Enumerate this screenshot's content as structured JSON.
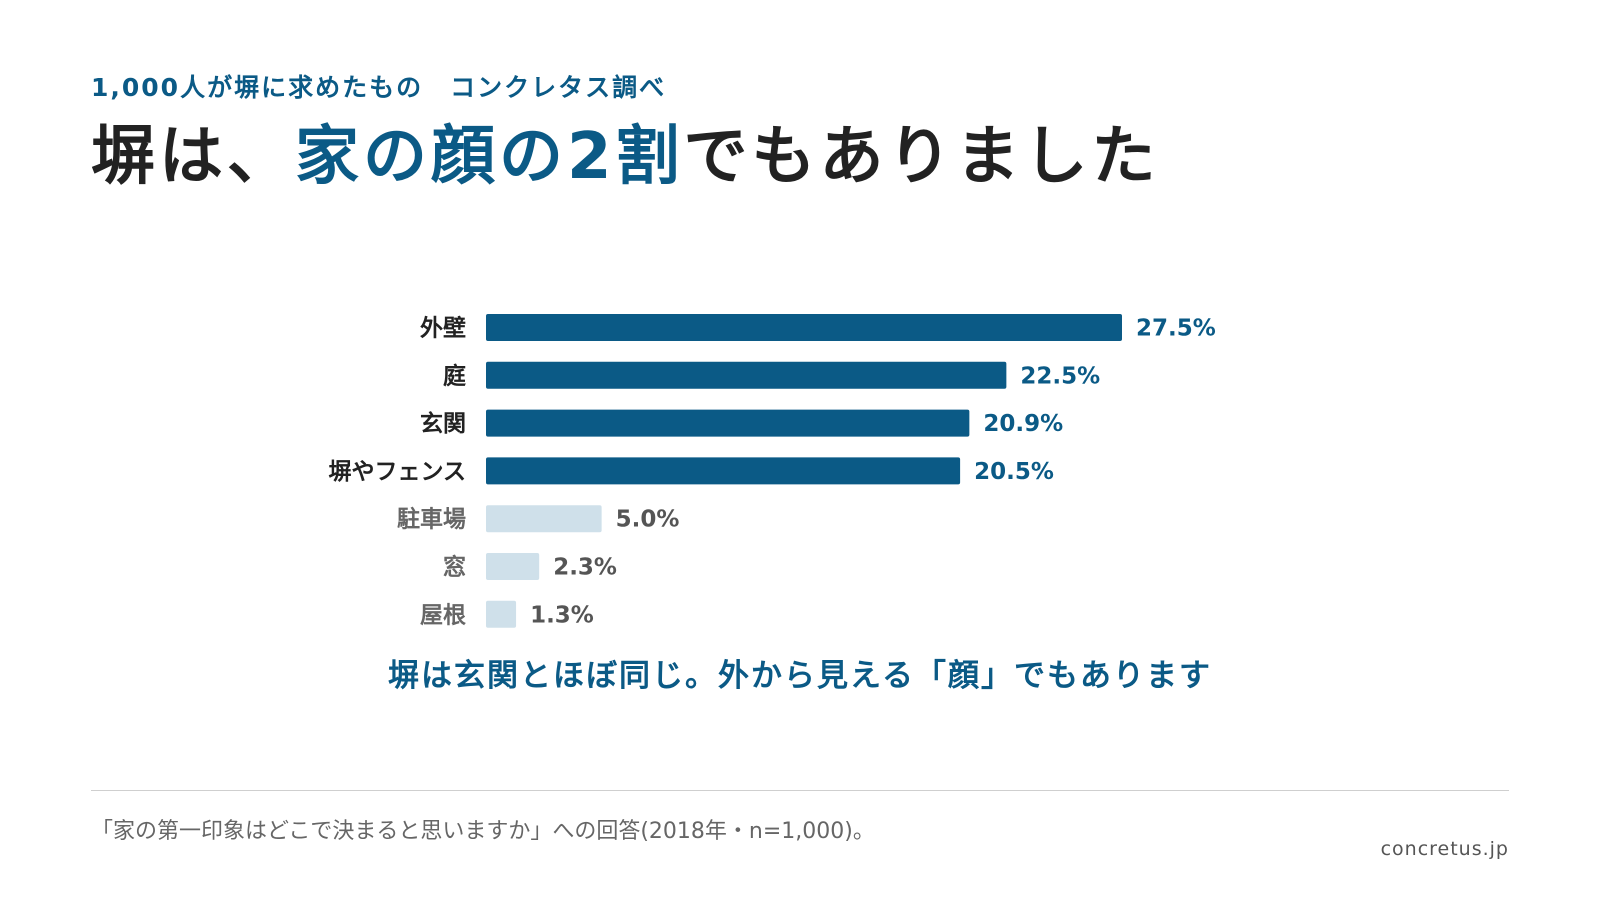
{
  "header": {
    "subtitle": "1,000人が塀に求めたもの　コンクレタス調べ",
    "title_prefix": "塀は、",
    "title_accent": "家の顔の2割",
    "title_suffix": "でもありました"
  },
  "chart_data": {
    "type": "bar",
    "orientation": "horizontal",
    "categories": [
      "外壁",
      "庭",
      "玄関",
      "塀やフェンス",
      "駐車場",
      "窓",
      "屋根"
    ],
    "values": [
      27.5,
      22.5,
      20.9,
      20.5,
      5.0,
      2.3,
      1.3
    ],
    "value_labels": [
      "27.5%",
      "22.5%",
      "20.9%",
      "20.5%",
      "5.0%",
      "2.3%",
      "1.3%"
    ],
    "highlight_count": 4,
    "xlim": [
      0,
      27.5
    ],
    "grid": false,
    "colors": {
      "highlight_bar": "#0b5a86",
      "muted_bar": "#cfe0ea",
      "highlight_text": "#222222",
      "muted_text": "#666666",
      "highlight_value": "#0b5a86",
      "muted_value": "#555555"
    }
  },
  "callout": "塀は玄関とほぼ同じ。外から見える「顔」でもあります",
  "footnote": "「家の第一印象はどこで決まると思いますか」への回答(2018年・n=1,000)。",
  "source": "concretus.jp"
}
